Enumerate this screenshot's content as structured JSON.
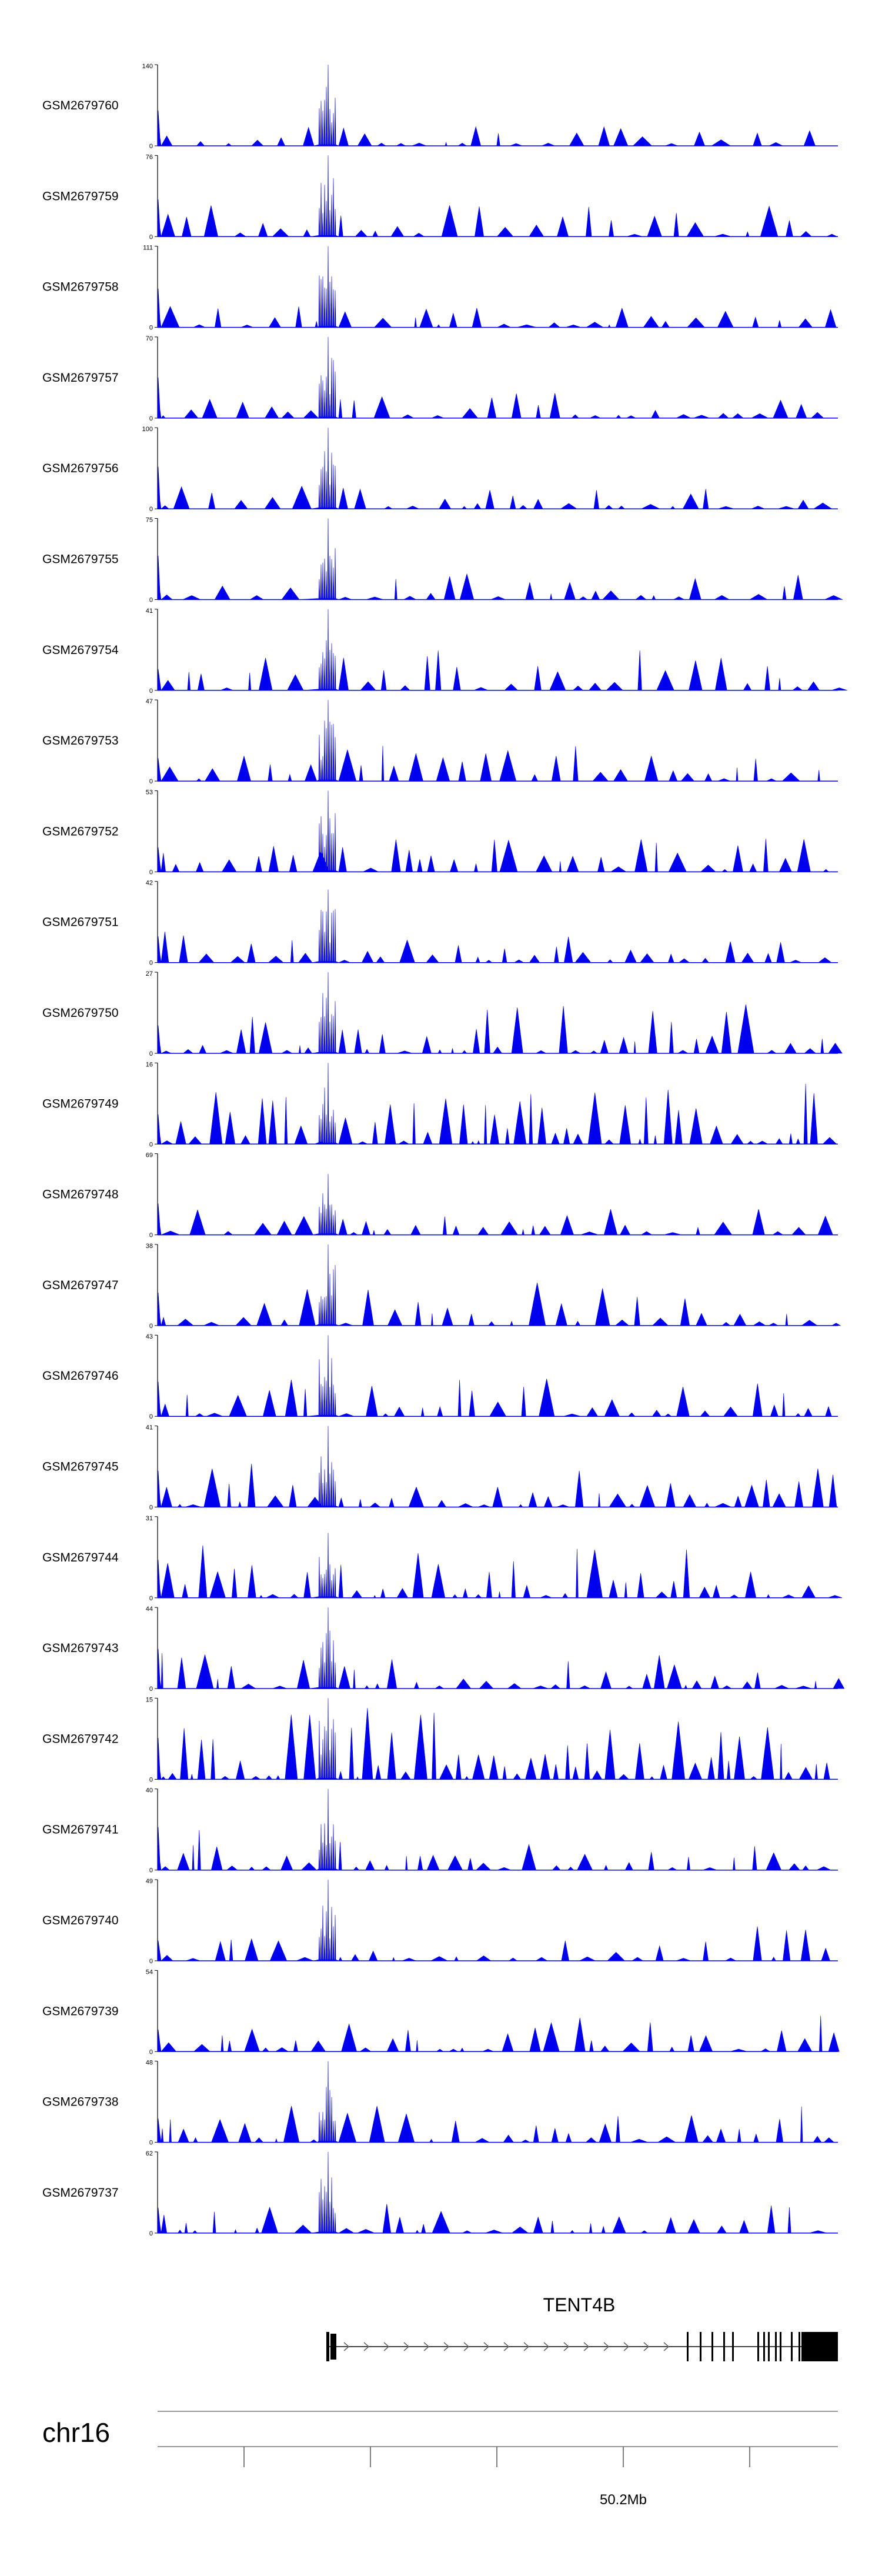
{
  "chart_data": {
    "type": "area",
    "color": "#0000ee",
    "peak_region": "TENT4B promoter",
    "tracks": [
      {
        "label": "GSM2679760",
        "ymax": "140",
        "ymin": "0",
        "peak_frac": 1.0,
        "density": 0.25
      },
      {
        "label": "GSM2679759",
        "ymax": "76",
        "ymin": "0",
        "peak_frac": 1.0,
        "density": 0.45
      },
      {
        "label": "GSM2679758",
        "ymax": "111",
        "ymin": "0",
        "peak_frac": 1.0,
        "density": 0.3
      },
      {
        "label": "GSM2679757",
        "ymax": "70",
        "ymin": "0",
        "peak_frac": 1.0,
        "density": 0.35
      },
      {
        "label": "GSM2679756",
        "ymax": "100",
        "ymin": "0",
        "peak_frac": 1.0,
        "density": 0.35
      },
      {
        "label": "GSM2679755",
        "ymax": "75",
        "ymin": "0",
        "peak_frac": 1.0,
        "density": 0.35
      },
      {
        "label": "GSM2679754",
        "ymax": "41",
        "ymin": "0",
        "peak_frac": 1.0,
        "density": 0.55
      },
      {
        "label": "GSM2679753",
        "ymax": "47",
        "ymin": "0",
        "peak_frac": 1.0,
        "density": 0.5
      },
      {
        "label": "GSM2679752",
        "ymax": "53",
        "ymin": "0",
        "peak_frac": 1.0,
        "density": 0.45
      },
      {
        "label": "GSM2679751",
        "ymax": "42",
        "ymin": "0",
        "peak_frac": 0.9,
        "density": 0.55
      },
      {
        "label": "GSM2679750",
        "ymax": "27",
        "ymin": "0",
        "peak_frac": 1.0,
        "density": 0.7
      },
      {
        "label": "GSM2679749",
        "ymax": "16",
        "ymin": "0",
        "peak_frac": 1.0,
        "density": 0.95
      },
      {
        "label": "GSM2679748",
        "ymax": "69",
        "ymin": "0",
        "peak_frac": 0.75,
        "density": 0.35
      },
      {
        "label": "GSM2679747",
        "ymax": "38",
        "ymin": "0",
        "peak_frac": 1.0,
        "density": 0.6
      },
      {
        "label": "GSM2679746",
        "ymax": "43",
        "ymin": "0",
        "peak_frac": 1.0,
        "density": 0.55
      },
      {
        "label": "GSM2679745",
        "ymax": "41",
        "ymin": "0",
        "peak_frac": 1.0,
        "density": 0.6
      },
      {
        "label": "GSM2679744",
        "ymax": "31",
        "ymin": "0",
        "peak_frac": 0.8,
        "density": 0.75
      },
      {
        "label": "GSM2679743",
        "ymax": "44",
        "ymin": "0",
        "peak_frac": 1.0,
        "density": 0.55
      },
      {
        "label": "GSM2679742",
        "ymax": "15",
        "ymin": "0",
        "peak_frac": 1.0,
        "density": 1.0
      },
      {
        "label": "GSM2679741",
        "ymax": "40",
        "ymin": "0",
        "peak_frac": 1.0,
        "density": 0.55
      },
      {
        "label": "GSM2679740",
        "ymax": "49",
        "ymin": "0",
        "peak_frac": 1.0,
        "density": 0.5
      },
      {
        "label": "GSM2679739",
        "ymax": "54",
        "ymin": "0",
        "peak_frac": 1.0,
        "density": 0.5
      },
      {
        "label": "GSM2679738",
        "ymax": "48",
        "ymin": "0",
        "peak_frac": 1.0,
        "density": 0.5
      },
      {
        "label": "GSM2679737",
        "ymax": "62",
        "ymin": "0",
        "peak_frac": 1.0,
        "density": 0.45
      }
    ],
    "gene": {
      "name": "TENT4B",
      "strand": "+"
    },
    "chromosome": "chr16",
    "axis_ticks": [
      {
        "label": ""
      },
      {
        "label": ""
      },
      {
        "label": ""
      },
      {
        "label": "50.2Mb"
      },
      {
        "label": ""
      }
    ]
  }
}
